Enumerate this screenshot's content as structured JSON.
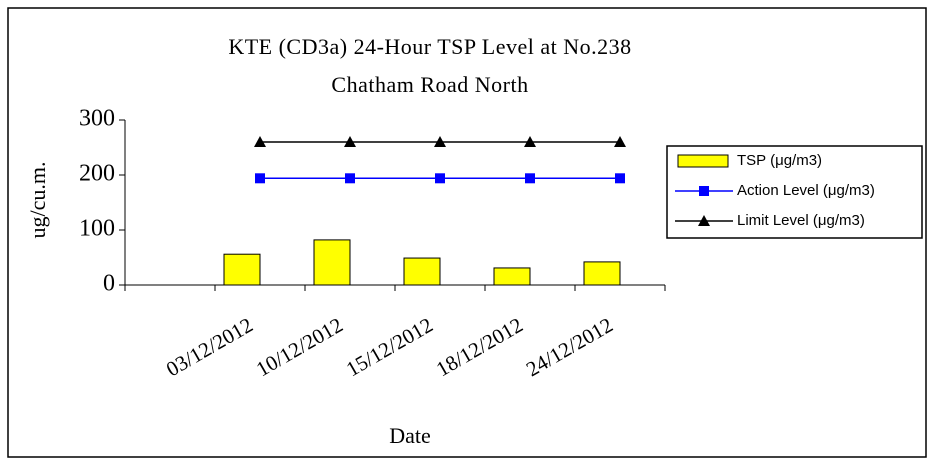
{
  "chart_data": {
    "type": "bar",
    "title": "KTE (CD3a) 24-Hour TSP Level at No.238 Chatham Road North",
    "x_label": "Date",
    "y_label": "ug/cu.m.",
    "categories": [
      null,
      "03/12/2012",
      "10/12/2012",
      "15/12/2012",
      "18/12/2012",
      "24/12/2012"
    ],
    "series": [
      {
        "name": "TSP (μg/m3)",
        "type": "bar",
        "color": "#ffff00",
        "values": [
          null,
          56,
          82,
          49,
          31,
          42
        ]
      },
      {
        "name": "Action Level (μg/m3)",
        "type": "line",
        "marker": "square",
        "color": "#0000ff",
        "values": [
          null,
          194,
          194,
          194,
          194,
          194
        ]
      },
      {
        "name": "Limit Level (μg/m3)",
        "type": "line",
        "marker": "triangle",
        "color": "#000000",
        "values": [
          null,
          260,
          260,
          260,
          260,
          260
        ]
      }
    ],
    "ylim": [
      0,
      300
    ],
    "yticks": [
      0,
      100,
      200,
      300
    ],
    "legend": "right",
    "grid": false
  }
}
